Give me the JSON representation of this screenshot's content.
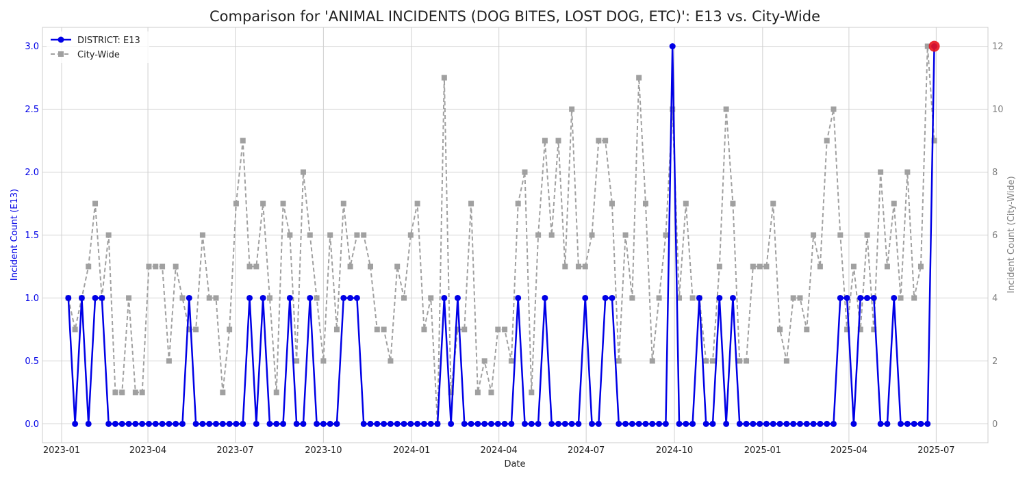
{
  "chart_data": {
    "type": "line",
    "title": "Comparison for 'ANIMAL INCIDENTS (DOG BITES, LOST DOG, ETC)': E13 vs. City-Wide",
    "xlabel": "Date",
    "ylabel_left": "Incident Count (E13)",
    "ylabel_right": "Incident Count (City-Wide)",
    "ylim_left": [
      -0.15,
      3.15
    ],
    "ylim_right": [
      -0.6,
      12.6
    ],
    "yticks_left": [
      "0.0",
      "0.5",
      "1.0",
      "1.5",
      "2.0",
      "2.5",
      "3.0"
    ],
    "yticks_right": [
      "0",
      "2",
      "4",
      "6",
      "8",
      "10",
      "12"
    ],
    "xticks": [
      "2023-01",
      "2023-04",
      "2023-07",
      "2023-10",
      "2024-01",
      "2024-04",
      "2024-07",
      "2024-10",
      "2025-01",
      "2025-04",
      "2025-07"
    ],
    "grid": true,
    "legend_position": "top-left",
    "x": [
      "2023-01-08",
      "2023-01-15",
      "2023-01-22",
      "2023-01-29",
      "2023-02-05",
      "2023-02-12",
      "2023-02-19",
      "2023-02-26",
      "2023-03-05",
      "2023-03-12",
      "2023-03-19",
      "2023-03-26",
      "2023-04-02",
      "2023-04-09",
      "2023-04-16",
      "2023-04-23",
      "2023-04-30",
      "2023-05-07",
      "2023-05-14",
      "2023-05-21",
      "2023-05-28",
      "2023-06-04",
      "2023-06-11",
      "2023-06-18",
      "2023-06-25",
      "2023-07-02",
      "2023-07-09",
      "2023-07-16",
      "2023-07-23",
      "2023-07-30",
      "2023-08-06",
      "2023-08-13",
      "2023-08-20",
      "2023-08-27",
      "2023-09-03",
      "2023-09-10",
      "2023-09-17",
      "2023-09-24",
      "2023-10-01",
      "2023-10-08",
      "2023-10-15",
      "2023-10-22",
      "2023-10-29",
      "2023-11-05",
      "2023-11-12",
      "2023-11-19",
      "2023-11-26",
      "2023-12-03",
      "2023-12-10",
      "2023-12-17",
      "2023-12-24",
      "2023-12-31",
      "2024-01-07",
      "2024-01-14",
      "2024-01-21",
      "2024-01-28",
      "2024-02-04",
      "2024-02-11",
      "2024-02-18",
      "2024-02-25",
      "2024-03-03",
      "2024-03-10",
      "2024-03-17",
      "2024-03-24",
      "2024-03-31",
      "2024-04-07",
      "2024-04-14",
      "2024-04-21",
      "2024-04-28",
      "2024-05-05",
      "2024-05-12",
      "2024-05-19",
      "2024-05-26",
      "2024-06-02",
      "2024-06-09",
      "2024-06-16",
      "2024-06-23",
      "2024-06-30",
      "2024-07-07",
      "2024-07-14",
      "2024-07-21",
      "2024-07-28",
      "2024-08-04",
      "2024-08-11",
      "2024-08-18",
      "2024-08-25",
      "2024-09-01",
      "2024-09-08",
      "2024-09-15",
      "2024-09-22",
      "2024-09-29",
      "2024-10-06",
      "2024-10-13",
      "2024-10-20",
      "2024-10-27",
      "2024-11-03",
      "2024-11-10",
      "2024-11-17",
      "2024-11-24",
      "2024-12-01",
      "2024-12-08",
      "2024-12-15",
      "2024-12-22",
      "2024-12-29",
      "2025-01-05",
      "2025-01-12",
      "2025-01-19",
      "2025-01-26",
      "2025-02-02",
      "2025-02-09",
      "2025-02-16",
      "2025-02-23",
      "2025-03-02",
      "2025-03-09",
      "2025-03-16",
      "2025-03-23",
      "2025-03-30",
      "2025-04-06",
      "2025-04-13",
      "2025-04-20",
      "2025-04-27",
      "2025-05-04",
      "2025-05-11",
      "2025-05-18",
      "2025-05-25",
      "2025-06-01",
      "2025-06-08",
      "2025-06-15",
      "2025-06-22",
      "2025-06-29"
    ],
    "series": [
      {
        "name": "DISTRICT: E13",
        "axis": "left",
        "color": "#0000e6",
        "marker": "circle",
        "line_style": "solid",
        "values": [
          1,
          0,
          1,
          0,
          1,
          1,
          0,
          0,
          0,
          0,
          0,
          0,
          0,
          0,
          0,
          0,
          0,
          0,
          1,
          0,
          0,
          0,
          0,
          0,
          0,
          0,
          0,
          1,
          0,
          1,
          0,
          0,
          0,
          1,
          0,
          0,
          1,
          0,
          0,
          0,
          0,
          1,
          1,
          1,
          0,
          0,
          0,
          0,
          0,
          0,
          0,
          0,
          0,
          0,
          0,
          0,
          1,
          0,
          1,
          0,
          0,
          0,
          0,
          0,
          0,
          0,
          0,
          1,
          0,
          0,
          0,
          1,
          0,
          0,
          0,
          0,
          0,
          1,
          0,
          0,
          1,
          1,
          0,
          0,
          0,
          0,
          0,
          0,
          0,
          0,
          3,
          0,
          0,
          0,
          1,
          0,
          0,
          1,
          0,
          1,
          0,
          0,
          0,
          0,
          0,
          0,
          0,
          0,
          0,
          0,
          0,
          0,
          0,
          0,
          0,
          1,
          1,
          0,
          1,
          1,
          1,
          0,
          0,
          1,
          0,
          0,
          0,
          0,
          0,
          3
        ]
      },
      {
        "name": "City-Wide",
        "axis": "right",
        "color": "#a0a0a0",
        "marker": "square",
        "line_style": "dashed",
        "values": [
          4,
          3,
          4,
          5,
          7,
          4,
          6,
          1,
          1,
          4,
          1,
          1,
          5,
          5,
          5,
          2,
          5,
          4,
          3,
          3,
          6,
          4,
          4,
          1,
          3,
          7,
          9,
          5,
          5,
          7,
          4,
          1,
          7,
          6,
          2,
          8,
          6,
          4,
          2,
          6,
          3,
          7,
          5,
          6,
          6,
          5,
          3,
          3,
          2,
          5,
          4,
          6,
          7,
          3,
          4,
          0,
          11,
          1,
          3,
          3,
          7,
          1,
          2,
          1,
          3,
          3,
          2,
          7,
          8,
          1,
          6,
          9,
          6,
          9,
          5,
          10,
          5,
          5,
          6,
          9,
          9,
          7,
          2,
          6,
          4,
          11,
          7,
          2,
          4,
          6,
          10,
          4,
          7,
          4,
          4,
          2,
          2,
          5,
          10,
          7,
          2,
          2,
          5,
          5,
          5,
          7,
          3,
          2,
          4,
          4,
          3,
          6,
          5,
          9,
          10,
          6,
          3,
          5,
          3,
          6,
          3,
          8,
          5,
          7,
          4,
          8,
          4,
          5,
          12,
          9
        ]
      }
    ],
    "highlight": {
      "x": "2025-06-29",
      "value": 3,
      "axis": "left",
      "color": "#e8141e"
    }
  }
}
